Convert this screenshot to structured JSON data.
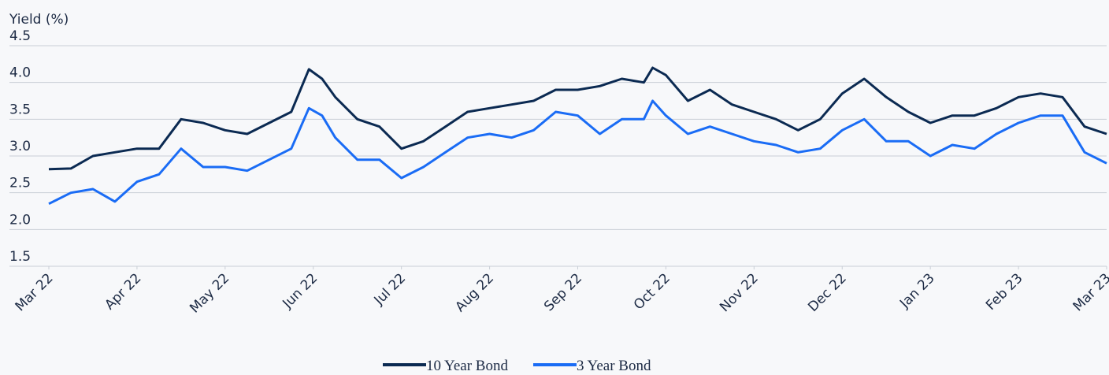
{
  "chart_data": {
    "type": "line",
    "y_label": "Yield (%)",
    "x": [
      0,
      0.25,
      0.5,
      0.75,
      1.0,
      1.25,
      1.5,
      1.75,
      2.0,
      2.25,
      2.5,
      2.75,
      2.95,
      3.1,
      3.25,
      3.5,
      3.75,
      4.0,
      4.25,
      4.5,
      4.75,
      5.0,
      5.25,
      5.5,
      5.75,
      6.0,
      6.25,
      6.5,
      6.75,
      6.85,
      7.0,
      7.25,
      7.5,
      7.75,
      8.0,
      8.25,
      8.5,
      8.75,
      9.0,
      9.25,
      9.5,
      9.75,
      10.0,
      10.25,
      10.5,
      10.75,
      11.0,
      11.25,
      11.5,
      11.75,
      12.0
    ],
    "series": [
      {
        "name": "10 Year Bond",
        "color": "#0b2a52",
        "values": [
          2.82,
          2.83,
          3.0,
          3.05,
          3.1,
          3.1,
          3.5,
          3.45,
          3.35,
          3.3,
          3.45,
          3.6,
          4.18,
          4.05,
          3.8,
          3.5,
          3.4,
          3.1,
          3.2,
          3.4,
          3.6,
          3.65,
          3.7,
          3.75,
          3.9,
          3.9,
          3.95,
          4.05,
          4.0,
          4.2,
          4.1,
          3.75,
          3.9,
          3.7,
          3.6,
          3.5,
          3.35,
          3.5,
          3.85,
          4.05,
          3.8,
          3.6,
          3.45,
          3.55,
          3.55,
          3.65,
          3.8,
          3.85,
          3.8,
          3.4,
          3.3
        ]
      },
      {
        "name": "3 Year Bond",
        "color": "#1a6cf5",
        "values": [
          2.35,
          2.5,
          2.55,
          2.38,
          2.65,
          2.75,
          3.1,
          2.85,
          2.85,
          2.8,
          2.95,
          3.1,
          3.65,
          3.55,
          3.25,
          2.95,
          2.95,
          2.7,
          2.85,
          3.05,
          3.25,
          3.3,
          3.25,
          3.35,
          3.6,
          3.55,
          3.3,
          3.5,
          3.5,
          3.75,
          3.55,
          3.3,
          3.4,
          3.3,
          3.2,
          3.15,
          3.05,
          3.1,
          3.35,
          3.5,
          3.2,
          3.2,
          3.0,
          3.15,
          3.1,
          3.3,
          3.45,
          3.55,
          3.55,
          3.05,
          2.9
        ]
      }
    ],
    "xlim": [
      0,
      12
    ],
    "xticks": [
      {
        "value": 0,
        "label": "Mar 22"
      },
      {
        "value": 1,
        "label": "Apr 22"
      },
      {
        "value": 2,
        "label": "May 22"
      },
      {
        "value": 3,
        "label": "Jun 22"
      },
      {
        "value": 4,
        "label": "Jul 22"
      },
      {
        "value": 5,
        "label": "Aug 22"
      },
      {
        "value": 6,
        "label": "Sep 22"
      },
      {
        "value": 7,
        "label": "Oct 22"
      },
      {
        "value": 8,
        "label": "Nov 22"
      },
      {
        "value": 9,
        "label": "Dec 22"
      },
      {
        "value": 10,
        "label": "Jan 23"
      },
      {
        "value": 11,
        "label": "Feb 23"
      },
      {
        "value": 12,
        "label": "Mar 23"
      }
    ],
    "ylim": [
      1.5,
      4.5
    ],
    "yticks": [
      1.5,
      {
        "value": 2,
        "label": "2.0"
      },
      2.5,
      {
        "value": 3,
        "label": "3.0"
      },
      3.5,
      {
        "value": 4,
        "label": "4.0"
      },
      4.5
    ],
    "grid": true,
    "legend": "bottom"
  }
}
